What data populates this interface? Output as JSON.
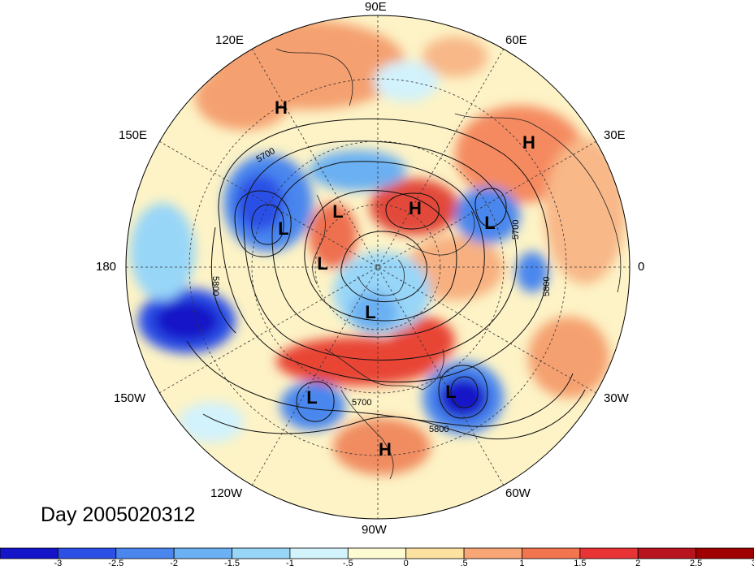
{
  "title": "Day 2005020312",
  "longitude_labels": {
    "e90": "90E",
    "e120": "120E",
    "e60": "60E",
    "e150": "150E",
    "e30": "30E",
    "w180": "180",
    "zero": "0",
    "w150": "150W",
    "w30": "30W",
    "w120": "120W",
    "w60": "60W",
    "w90": "90W"
  },
  "colorbar": {
    "colors": [
      "#1414c8",
      "#2c50e6",
      "#4a86ee",
      "#6ab0f2",
      "#98d6f8",
      "#d2f2fc",
      "#fdfbd2",
      "#fce1a0",
      "#f8a676",
      "#f27550",
      "#e83434",
      "#b8141e",
      "#a00000"
    ],
    "ticks": [
      "-3",
      "-2.5",
      "-2",
      "-1.5",
      "-1",
      "-.5",
      "0",
      ".5",
      "1",
      "1.5",
      "2",
      "2.5",
      "3"
    ]
  },
  "centers": [
    {
      "type": "H",
      "text": "H"
    },
    {
      "type": "H",
      "text": "H"
    },
    {
      "type": "H",
      "text": "H"
    },
    {
      "type": "H",
      "text": "H"
    },
    {
      "type": "L",
      "text": "L"
    },
    {
      "type": "L",
      "text": "L"
    },
    {
      "type": "L",
      "text": "L"
    },
    {
      "type": "L",
      "text": "L"
    },
    {
      "type": "L",
      "text": "L"
    },
    {
      "type": "L",
      "text": "L"
    },
    {
      "type": "L",
      "text": "L"
    }
  ],
  "contour_labels": [
    "5700",
    "5800",
    "5700",
    "5800",
    "5700",
    "5800"
  ]
}
